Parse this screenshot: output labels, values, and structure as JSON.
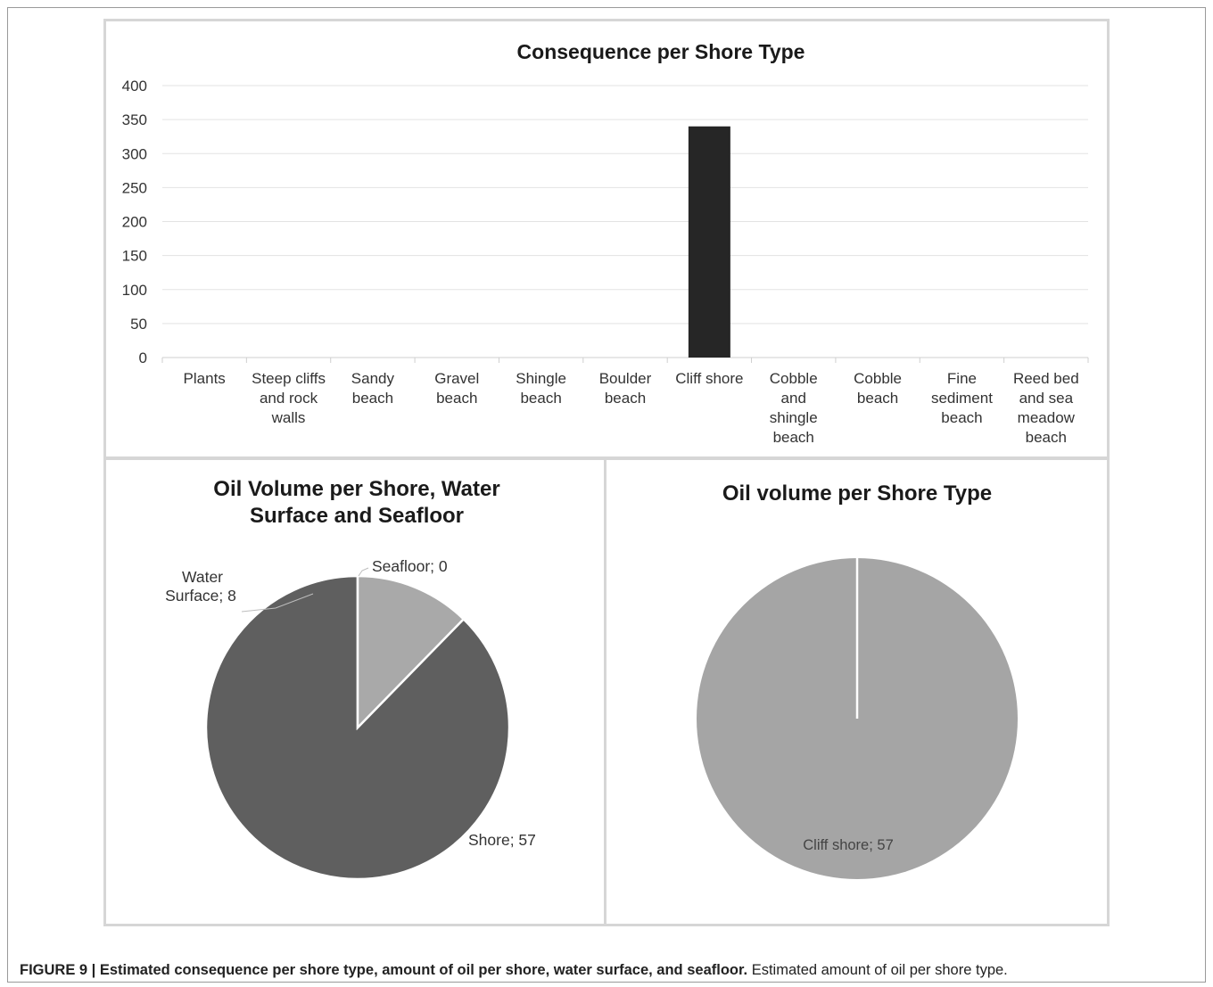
{
  "caption": {
    "bold": "FIGURE 9 | Estimated consequence per shore type, amount of oil per shore, water surface, and seafloor.",
    "normal": "Estimated amount of oil per shore type."
  },
  "chart_data": [
    {
      "type": "bar",
      "title": "Consequence per Shore Type",
      "xlabel": "",
      "ylabel": "",
      "categories": [
        "Plants",
        "Steep cliffs and rock walls",
        "Sandy beach",
        "Gravel beach",
        "Shingle beach",
        "Boulder beach",
        "Cliff shore",
        "Cobble and shingle beach",
        "Cobble beach",
        "Fine sediment beach",
        "Reed bed and sea meadow beach"
      ],
      "category_lines": [
        [
          "Plants"
        ],
        [
          "Steep cliffs",
          "and rock",
          "walls"
        ],
        [
          "Sandy",
          "beach"
        ],
        [
          "Gravel",
          "beach"
        ],
        [
          "Shingle",
          "beach"
        ],
        [
          "Boulder",
          "beach"
        ],
        [
          "Cliff shore"
        ],
        [
          "Cobble",
          "and",
          "shingle",
          "beach"
        ],
        [
          "Cobble",
          "beach"
        ],
        [
          "Fine",
          "sediment",
          "beach"
        ],
        [
          "Reed bed",
          "and sea",
          "meadow",
          "beach"
        ]
      ],
      "values": [
        0,
        0,
        0,
        0,
        0,
        0,
        340,
        0,
        0,
        0,
        0
      ],
      "ylim": [
        0,
        400
      ],
      "yticks": [
        0,
        50,
        100,
        150,
        200,
        250,
        300,
        350,
        400
      ],
      "grid": true,
      "color": "#262626"
    },
    {
      "type": "pie",
      "title": "Oil Volume per Shore, Water Surface and Seafloor",
      "title_lines": [
        "Oil Volume per Shore, Water",
        "Surface and Seafloor"
      ],
      "slices": [
        {
          "label": "Shore",
          "value": 57,
          "color": "#5f5f5f",
          "text": "Shore; 57"
        },
        {
          "label": "Water Surface",
          "value": 8,
          "color": "#a9a9a9",
          "text_lines": [
            "Water",
            "Surface; 8"
          ]
        },
        {
          "label": "Seafloor",
          "value": 0,
          "color": "#d9d9d9",
          "text": "Seafloor; 0"
        }
      ]
    },
    {
      "type": "pie",
      "title": "Oil volume per Shore Type",
      "slices": [
        {
          "label": "Cliff shore",
          "value": 57,
          "color": "#a5a5a5",
          "text": "Cliff shore; 57"
        }
      ]
    }
  ]
}
